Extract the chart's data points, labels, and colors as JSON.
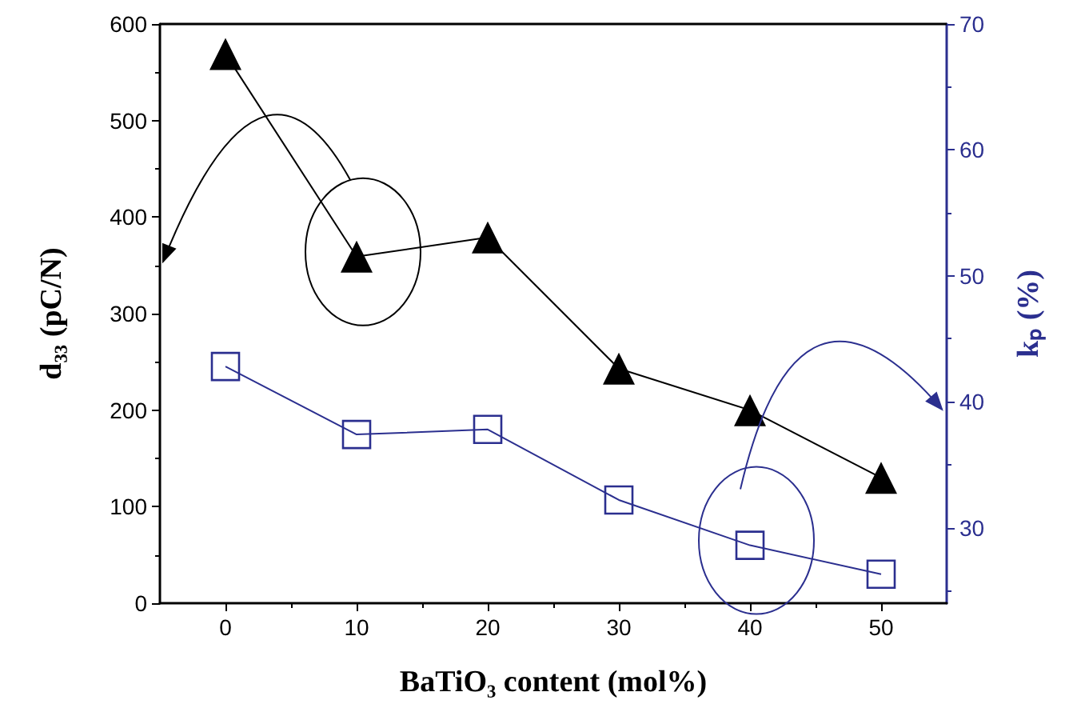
{
  "chart_data": {
    "type": "line",
    "xlabel": "BaTiO₃ content (mol%)",
    "ylabel": "d₃₃ (pC/N)",
    "y2label": "kₚ (%)",
    "x": [
      0,
      10,
      20,
      30,
      40,
      50
    ],
    "series": [
      {
        "color": "#000000",
        "marker": "triangle",
        "values": [
          569,
          359,
          379,
          243,
          200,
          130
        ]
      },
      {
        "color": "#2b2f8f",
        "marker": "square",
        "axis": "y2",
        "values": [
          42.8,
          37.4,
          37.8,
          32.2,
          28.6,
          26.3
        ]
      }
    ],
    "xlim": [
      -5,
      55
    ],
    "xticks": [
      0,
      10,
      20,
      30,
      40,
      50
    ],
    "ylim": [
      0,
      600
    ],
    "yticks": [
      0,
      100,
      200,
      300,
      400,
      500,
      600
    ],
    "y2lim": [
      24,
      70
    ],
    "y2ticks": [
      30,
      40,
      50,
      60,
      70
    ],
    "grid": false
  }
}
